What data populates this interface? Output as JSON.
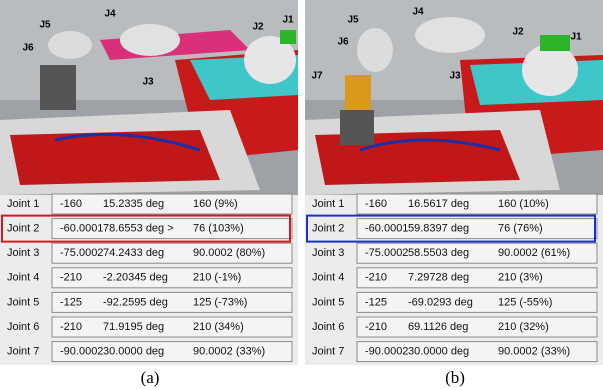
{
  "panels": [
    {
      "caption": "(a)",
      "image_labels": [
        "J1",
        "J2",
        "J3",
        "J4",
        "J5",
        "J6"
      ],
      "joints": [
        {
          "name": "Joint 1",
          "min": "-160",
          "value": "15.2335 deg",
          "max": "160 (9%)"
        },
        {
          "name": "Joint 2",
          "min": "-60.0001",
          "value": "78.6553 deg >",
          "max": "76 (103%)"
        },
        {
          "name": "Joint 3",
          "min": "-75.0002",
          "value": "74.2433 deg",
          "max": "90.0002 (80%)"
        },
        {
          "name": "Joint 4",
          "min": "-210",
          "value": "-2.20345 deg",
          "max": "210 (-1%)"
        },
        {
          "name": "Joint 5",
          "min": "-125",
          "value": "-92.2595 deg",
          "max": "125 (-73%)"
        },
        {
          "name": "Joint 6",
          "min": "-210",
          "value": "71.9195 deg",
          "max": "210 (34%)"
        },
        {
          "name": "Joint 7",
          "min": "-90.0002",
          "value": "30.0000 deg",
          "max": "90.0002 (33%)"
        }
      ]
    },
    {
      "caption": "(b)",
      "image_labels": [
        "J1",
        "J2",
        "J3",
        "J4",
        "J5",
        "J6",
        "J7"
      ],
      "joints": [
        {
          "name": "Joint 1",
          "min": "-160",
          "value": "16.5617 deg",
          "max": "160 (10%)"
        },
        {
          "name": "Joint 2",
          "min": "-60.0001",
          "value": "59.8397 deg",
          "max": "76 (76%)"
        },
        {
          "name": "Joint 3",
          "min": "-75.0002",
          "value": "58.5503 deg",
          "max": "90.0002 (61%)"
        },
        {
          "name": "Joint 4",
          "min": "-210",
          "value": "7.29728 deg",
          "max": "210 (3%)"
        },
        {
          "name": "Joint 5",
          "min": "-125",
          "value": "-69.0293 deg",
          "max": "125 (-55%)"
        },
        {
          "name": "Joint 6",
          "min": "-210",
          "value": "69.1126 deg",
          "max": "210 (32%)"
        },
        {
          "name": "Joint 7",
          "min": "-90.0002",
          "value": "30.0000 deg",
          "max": "90.0002 (33%)"
        }
      ]
    }
  ]
}
